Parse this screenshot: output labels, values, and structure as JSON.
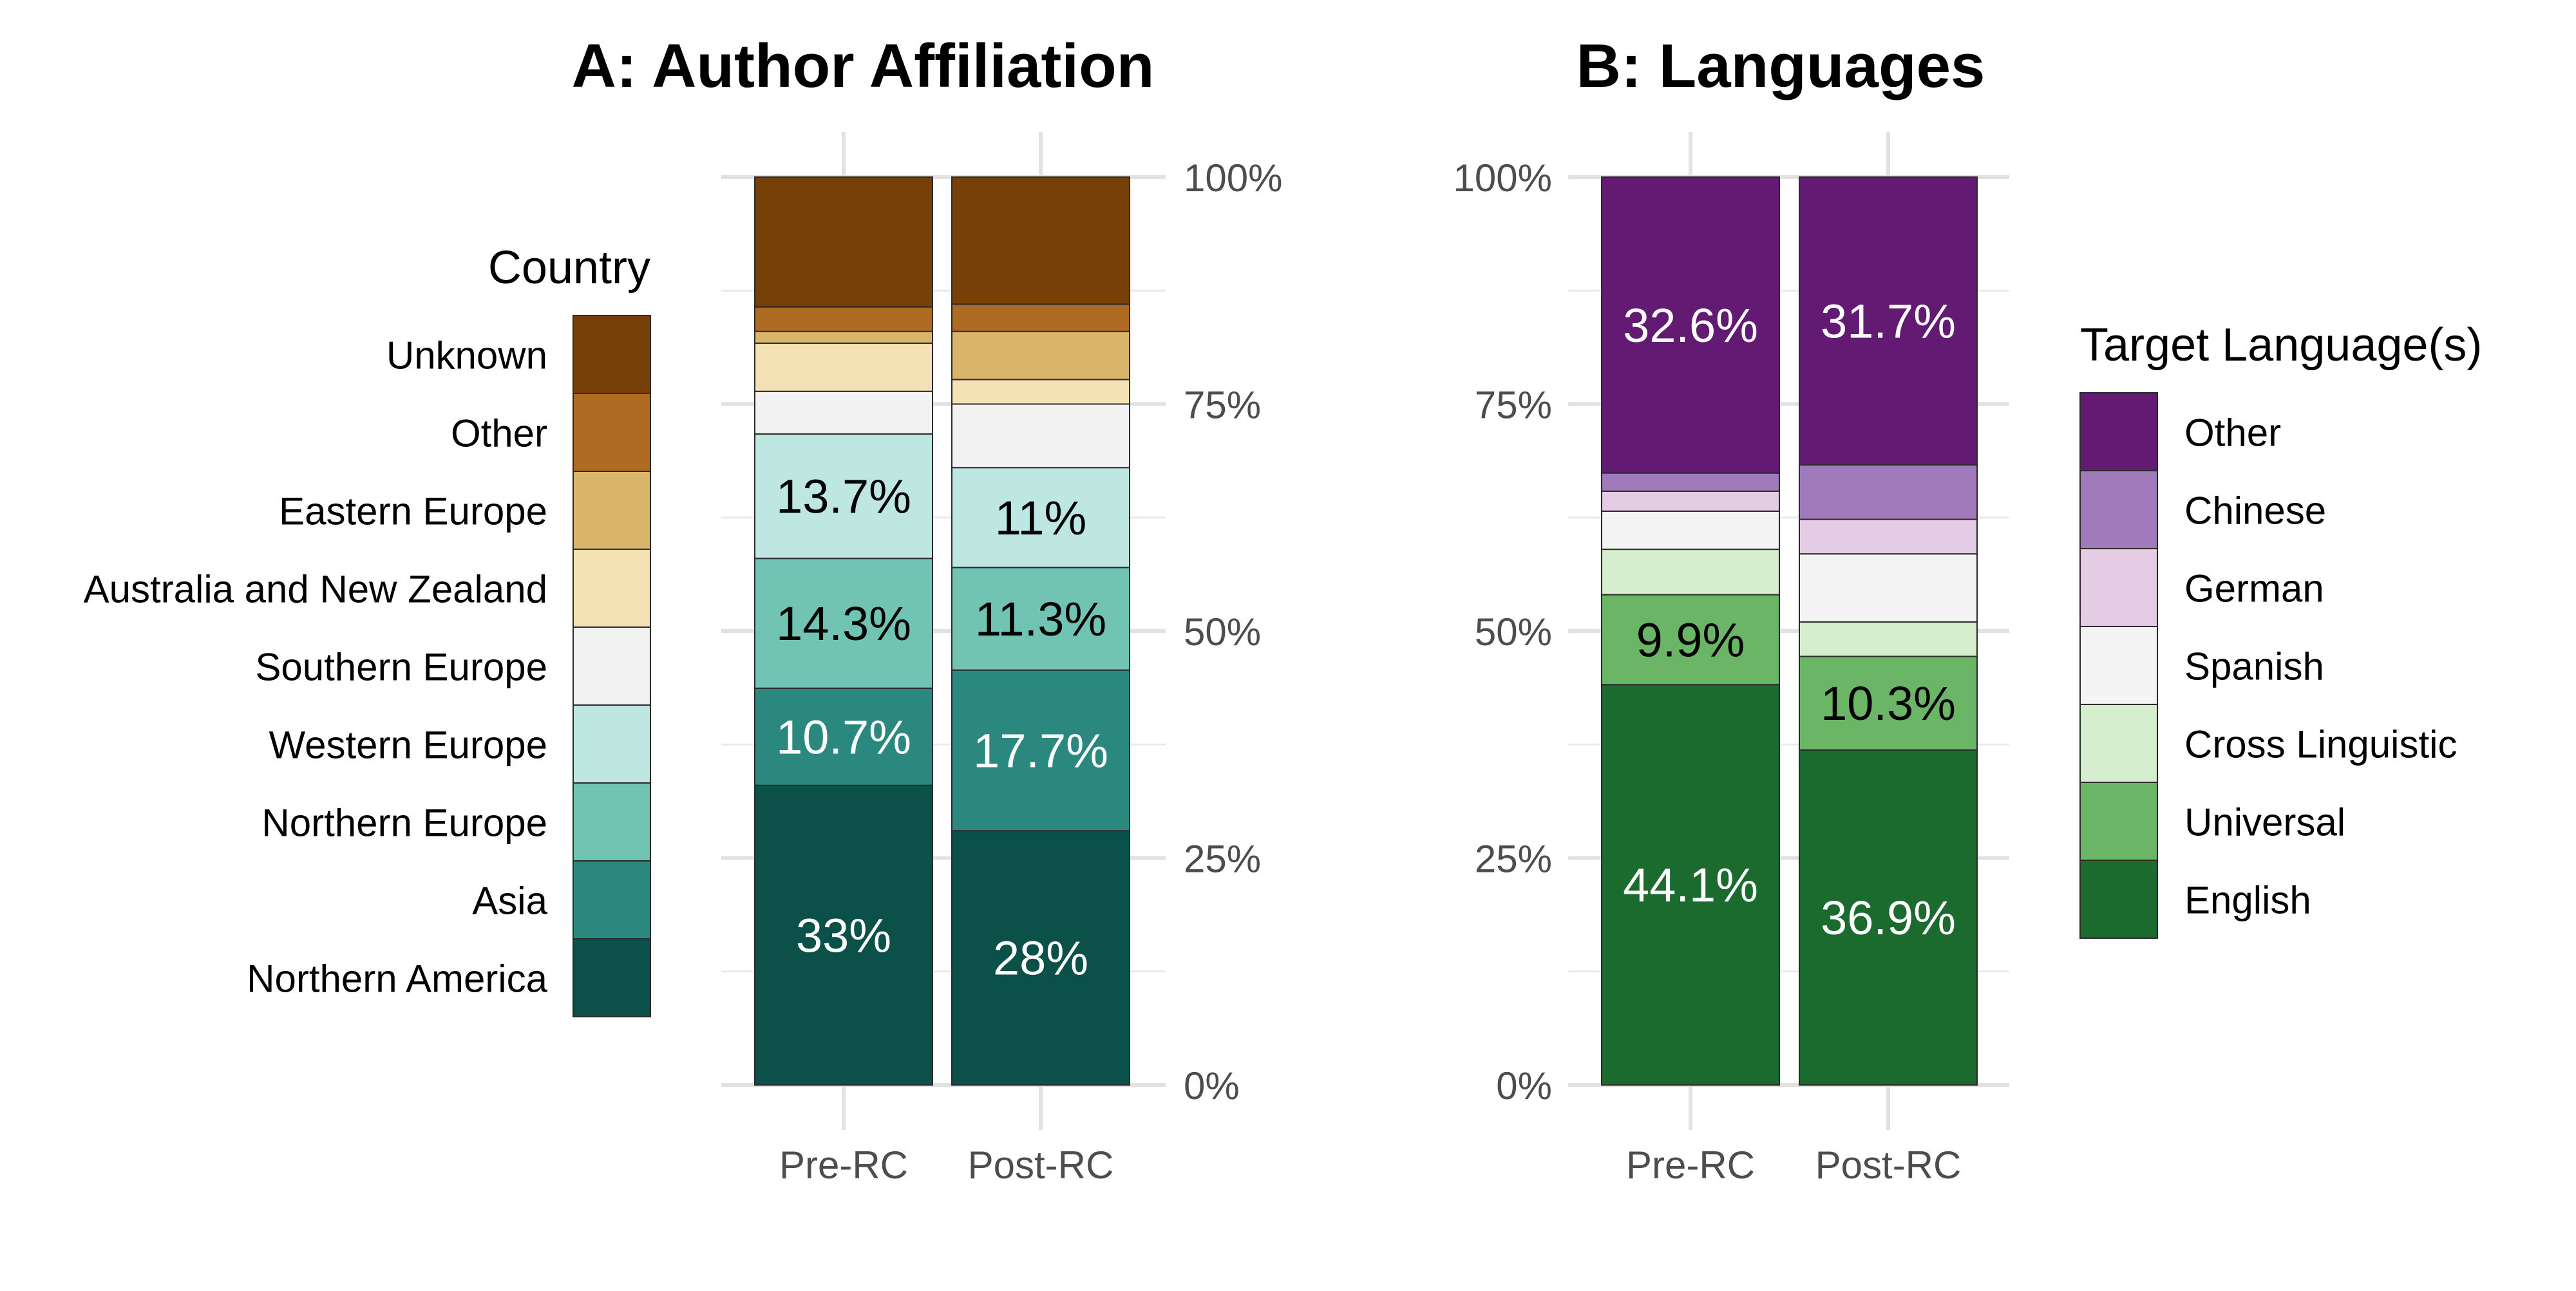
{
  "chart_data": [
    {
      "type": "bar",
      "stacked": true,
      "percent": true,
      "title": "A: Author Affiliation",
      "xlabel": "",
      "ylabel": "",
      "ylim": [
        0,
        1
      ],
      "y_ticks": [
        "0%",
        "25%",
        "50%",
        "75%",
        "100%"
      ],
      "y_axis_side": "right",
      "categories": [
        "Pre-RC",
        "Post-RC"
      ],
      "legend": {
        "title": "Country",
        "placement": "left"
      },
      "series": [
        {
          "name": "Northern America",
          "color": "#0C5149",
          "values": [
            0.33,
            0.28
          ],
          "labels": [
            "33%",
            "28%"
          ],
          "label_color": "#ffffff"
        },
        {
          "name": "Asia",
          "color": "#2B887E",
          "values": [
            0.107,
            0.177
          ],
          "labels": [
            "10.7%",
            "17.7%"
          ],
          "label_color": "#ffffff"
        },
        {
          "name": "Northern Europe",
          "color": "#71C4B3",
          "values": [
            0.143,
            0.113
          ],
          "labels": [
            "14.3%",
            "11.3%"
          ],
          "label_color": "#000000"
        },
        {
          "name": "Western Europe",
          "color": "#BDE7E0",
          "values": [
            0.137,
            0.11
          ],
          "labels": [
            "13.7%",
            "11%"
          ],
          "label_color": "#000000"
        },
        {
          "name": "Southern Europe",
          "color": "#F2F2F2",
          "values": [
            0.047,
            0.07
          ],
          "labels": [
            "",
            ""
          ],
          "label_color": "#000000"
        },
        {
          "name": "Australia and New Zealand",
          "color": "#F4E2B4",
          "values": [
            0.053,
            0.027
          ],
          "labels": [
            "",
            ""
          ],
          "label_color": "#000000"
        },
        {
          "name": "Eastern Europe",
          "color": "#D8B56A",
          "values": [
            0.013,
            0.053
          ],
          "labels": [
            "",
            ""
          ],
          "label_color": "#000000"
        },
        {
          "name": "Other",
          "color": "#AF6B22",
          "values": [
            0.027,
            0.03
          ],
          "labels": [
            "",
            ""
          ],
          "label_color": "#000000"
        },
        {
          "name": "Unknown",
          "color": "#774009",
          "values": [
            0.143,
            0.14
          ],
          "labels": [
            "",
            ""
          ],
          "label_color": "#000000"
        }
      ],
      "grid": true
    },
    {
      "type": "bar",
      "stacked": true,
      "percent": true,
      "title": "B: Languages",
      "xlabel": "",
      "ylabel": "",
      "ylim": [
        0,
        1
      ],
      "y_ticks": [
        "0%",
        "25%",
        "50%",
        "75%",
        "100%"
      ],
      "y_axis_side": "left",
      "categories": [
        "Pre-RC",
        "Post-RC"
      ],
      "legend": {
        "title": "Target Language(s)",
        "placement": "right"
      },
      "series": [
        {
          "name": "English",
          "color": "#1B6B2E",
          "values": [
            0.441,
            0.369
          ],
          "labels": [
            "44.1%",
            "36.9%"
          ],
          "label_color": "#ffffff"
        },
        {
          "name": "Universal",
          "color": "#6BB566",
          "values": [
            0.099,
            0.103
          ],
          "labels": [
            "9.9%",
            "10.3%"
          ],
          "label_color": "#000000"
        },
        {
          "name": "Cross Linguistic",
          "color": "#D5EECE",
          "values": [
            0.05,
            0.038
          ],
          "labels": [
            "",
            ""
          ],
          "label_color": "#000000"
        },
        {
          "name": "Spanish",
          "color": "#F4F4F4",
          "values": [
            0.042,
            0.075
          ],
          "labels": [
            "",
            ""
          ],
          "label_color": "#000000"
        },
        {
          "name": "German",
          "color": "#E3CCE4",
          "values": [
            0.022,
            0.038
          ],
          "labels": [
            "",
            ""
          ],
          "label_color": "#000000"
        },
        {
          "name": "Chinese",
          "color": "#A07ABB",
          "values": [
            0.02,
            0.06
          ],
          "labels": [
            "",
            ""
          ],
          "label_color": "#000000"
        },
        {
          "name": "Other",
          "color": "#621A72",
          "values": [
            0.326,
            0.317
          ],
          "labels": [
            "32.6%",
            "31.7%"
          ],
          "label_color": "#ffffff"
        }
      ],
      "grid": true
    }
  ]
}
